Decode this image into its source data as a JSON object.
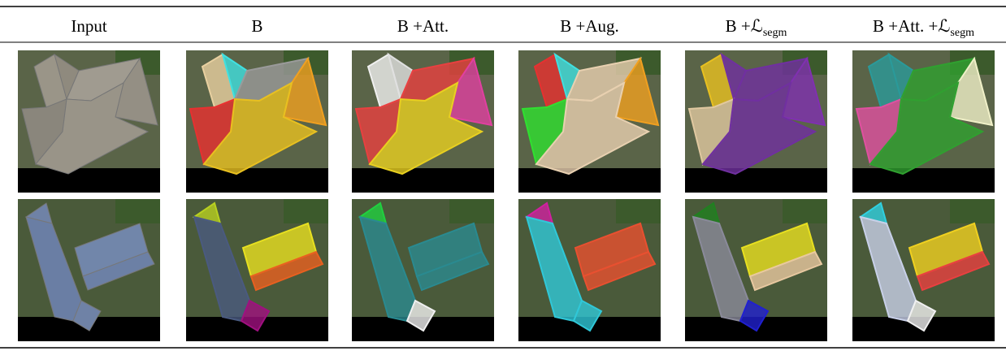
{
  "header": {
    "columns": [
      {
        "label": "Input"
      },
      {
        "label": "B"
      },
      {
        "label": "B +Att."
      },
      {
        "label": "B +Aug."
      },
      {
        "label": "B +ℒ",
        "subscript": "segm"
      },
      {
        "label": "B +Att. +ℒ",
        "subscript": "segm"
      }
    ]
  }
}
